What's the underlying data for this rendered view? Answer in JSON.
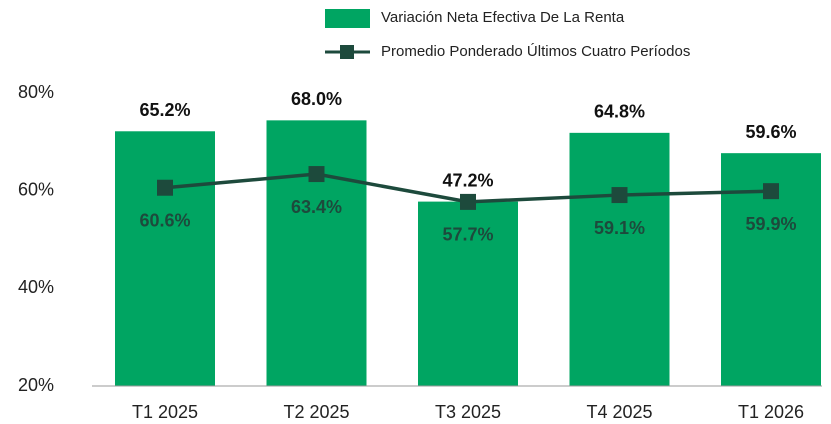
{
  "chart_data": {
    "type": "bar-line",
    "categories": [
      "T1 2025",
      "T2 2025",
      "T3 2025",
      "T4 2025",
      "T1 2026"
    ],
    "series": [
      {
        "name": "Variación Neta Efectiva De La Renta",
        "color": "#00a562",
        "type": "bar",
        "axis": "y2",
        "values": [
          65.2,
          68.0,
          47.2,
          64.8,
          59.6
        ],
        "value_labels": [
          "65.2%",
          "68.0%",
          "47.2%",
          "64.8%",
          "59.6%"
        ]
      },
      {
        "name": "Promedio Ponderado Últimos Cuatro Períodos",
        "color": "#1d4a3c",
        "type": "line",
        "values": [
          60.6,
          63.4,
          57.7,
          59.1,
          59.9
        ],
        "value_labels": [
          "60.6%",
          "63.4%",
          "57.7%",
          "59.1%",
          "59.9%"
        ]
      }
    ],
    "ylim": [
      20,
      80
    ],
    "yticks": [
      {
        "value": 20,
        "label": "20%"
      },
      {
        "value": 40,
        "label": "40%"
      },
      {
        "value": 60,
        "label": "60%"
      },
      {
        "value": 80,
        "label": "80%"
      }
    ],
    "y2lim": [
      0,
      75
    ]
  }
}
